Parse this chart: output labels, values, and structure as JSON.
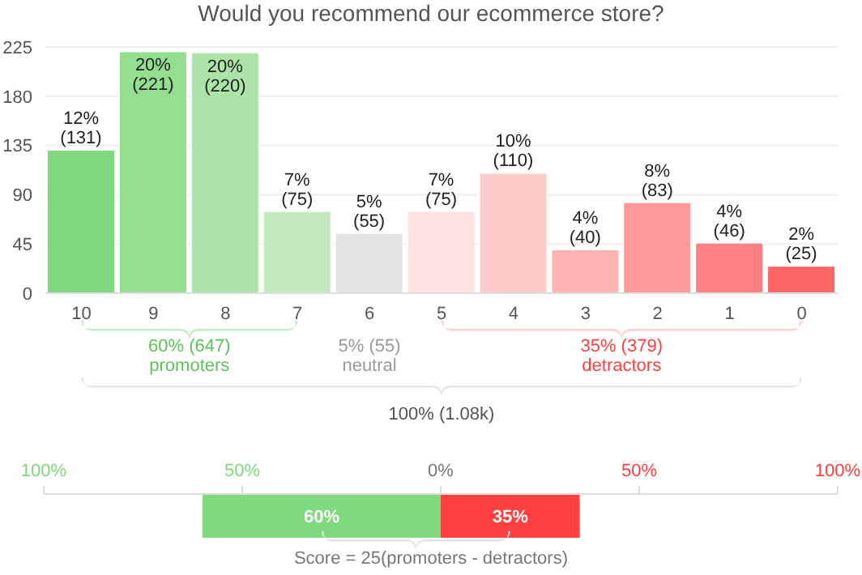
{
  "chart_data": [
    {
      "type": "bar",
      "title": "Would you recommend our ecommerce store?",
      "categories": [
        "10",
        "9",
        "8",
        "7",
        "6",
        "5",
        "4",
        "3",
        "2",
        "1",
        "0"
      ],
      "values": [
        131,
        221,
        220,
        75,
        55,
        75,
        110,
        40,
        83,
        46,
        25
      ],
      "colors": [
        "#7fd87f",
        "#93df8f",
        "#ace4a8",
        "#c3eac0",
        "#e3e3e3",
        "#ffe3e3",
        "#ffcccc",
        "#ffb3b3",
        "#ff9a9a",
        "#ff8080",
        "#ff6666"
      ],
      "value_labels": [
        "12%\n(131)",
        "20%\n(221)",
        "20%\n(220)",
        "7%\n(75)",
        "5%\n(55)",
        "7%\n(75)",
        "10%\n(110)",
        "4%\n(40)",
        "8%\n(83)",
        "4%\n(46)",
        "2%\n(25)"
      ],
      "ylim": [
        0,
        225
      ],
      "yticks": [
        0,
        45,
        90,
        135,
        180,
        225
      ],
      "grid": "y",
      "annotations": [
        "60% (647)",
        "promoters",
        "5% (55)",
        "neutral",
        "35% (379)",
        "detractors",
        "100% (1.08k)"
      ]
    },
    {
      "type": "bar",
      "orientation": "horizontal",
      "categories": [
        null
      ],
      "series": [
        {
          "color": "#80d97f",
          "values": [
            60
          ],
          "base": [
            -60
          ],
          "value_labels": [
            "60%"
          ]
        },
        {
          "color": "#ff4040",
          "values": [
            35
          ],
          "base": [
            0
          ],
          "value_labels": [
            "35%"
          ]
        }
      ],
      "xlim": [
        -100,
        100
      ],
      "xticks": [
        {
          "value": -100,
          "label": "100%"
        },
        {
          "value": -50,
          "label": "50%"
        },
        {
          "value": 0,
          "label": "0%"
        },
        {
          "value": 50,
          "label": "50%"
        },
        {
          "value": 100,
          "label": "100%"
        }
      ],
      "annotations": [
        "Score = 25(promoters - detractors)"
      ]
    }
  ]
}
